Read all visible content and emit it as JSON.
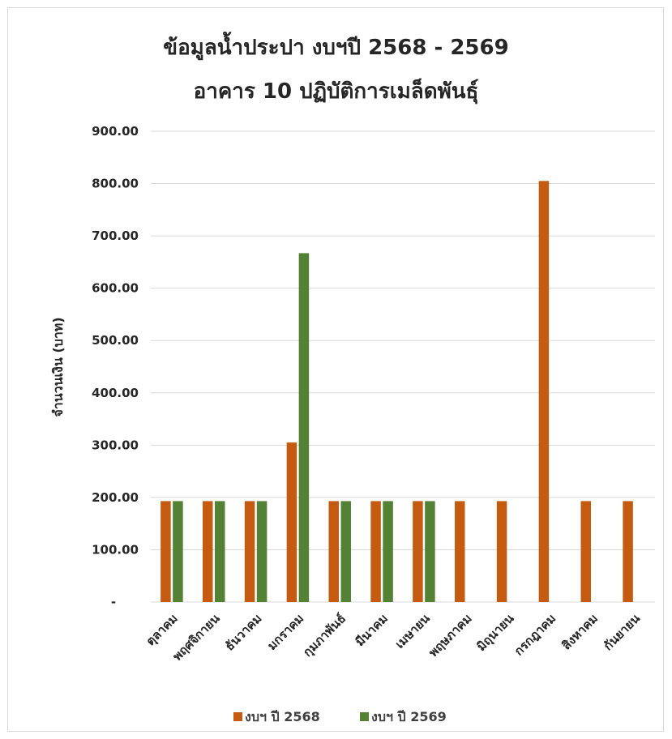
{
  "chart_data": {
    "type": "bar",
    "title_lines": [
      "ข้อมูลน้ำประปา งบฯปี 2568 - 2569",
      "อาคาร 10 ปฏิบัติการเมล็ดพันธุ์"
    ],
    "xlabel": "",
    "ylabel": "จำนวนเงิน (บาท)",
    "ylim": [
      0,
      900
    ],
    "yticks": [
      0,
      100,
      200,
      300,
      400,
      500,
      600,
      700,
      800,
      900
    ],
    "ytick_labels": [
      "-",
      "100.00",
      "200.00",
      "300.00",
      "400.00",
      "500.00",
      "600.00",
      "700.00",
      "800.00",
      "900.00"
    ],
    "grid": true,
    "legend_position": "bottom",
    "categories": [
      "ตุลาคม",
      "พฤศจิกายน",
      "ธันวาคม",
      "มกราคม",
      "กุมภาพันธ์",
      "มีนาคม",
      "เมษายน",
      "พฤษภาคม",
      "มิถุนายน",
      "กรกฎาคม",
      "สิงหาคม",
      "กันยายน"
    ],
    "series": [
      {
        "name": "งบฯ ปี 2568",
        "color": "#C55A11",
        "values": [
          193,
          193,
          193,
          305,
          193,
          193,
          193,
          193,
          193,
          805,
          193,
          193
        ]
      },
      {
        "name": "งบฯ ปี 2569",
        "color": "#548235",
        "values": [
          193,
          193,
          193,
          667,
          193,
          193,
          193,
          null,
          null,
          null,
          null,
          null
        ]
      }
    ]
  }
}
